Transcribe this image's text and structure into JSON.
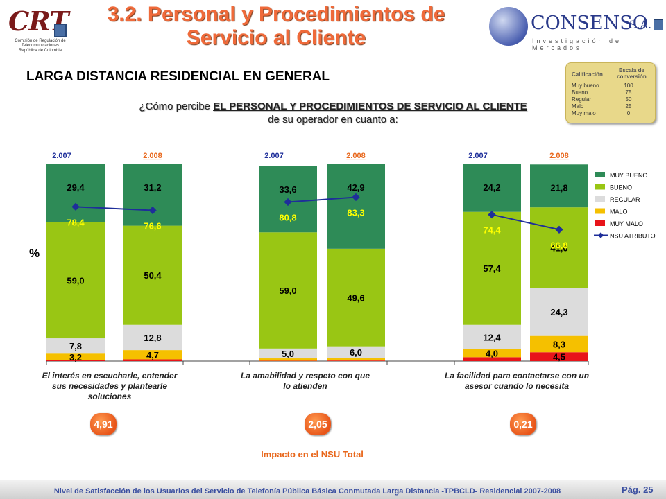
{
  "header": {
    "title_line1": "3.2. Personal y Procedimientos de",
    "title_line2": "Servicio al Cliente",
    "crt_logo": "CRT",
    "crt_caption": "Comisión de Regulación de Telecomunicaciones República de Colombia",
    "consenso_name": "CONSENSO",
    "consenso_sa": "S.A.",
    "consenso_sub": "Investigación de Mercados"
  },
  "section_title": "LARGA DISTANCIA RESIDENCIAL EN GENERAL",
  "question": {
    "prefix": "¿Cómo percibe ",
    "bold": "EL PERSONAL Y PROCEDIMIENTOS DE SERVICIO AL CLIENTE",
    "suffix": " de su operador en cuanto a:"
  },
  "scale_box": {
    "header_left": "Calificación",
    "header_right": "Escala de conversión",
    "rows": [
      {
        "label": "Muy bueno",
        "value": "100"
      },
      {
        "label": "Bueno",
        "value": "75"
      },
      {
        "label": "Regular",
        "value": "50"
      },
      {
        "label": "Malo",
        "value": "25"
      },
      {
        "label": "Muy malo",
        "value": "0"
      }
    ]
  },
  "y_unit_label": "%",
  "chart_data": {
    "type": "bar",
    "stacked": true,
    "years": [
      "2.007",
      "2.008"
    ],
    "categories": [
      "El interés en escucharle, entender sus necesidades y plantearle soluciones",
      "La amabilidad y respeto con que lo atienden",
      "La facilidad para contactarse con un asesor cuando lo necesita"
    ],
    "colors": {
      "MUY BUENO": "#2e8b57",
      "BUENO": "#99c614",
      "REGULAR": "#dcdcdc",
      "MALO": "#f5c000",
      "MUY MALO": "#e8141a",
      "NSU ATRIBUTO": "#1e2e9a"
    },
    "series_order": [
      "MUY MALO",
      "MALO",
      "REGULAR",
      "BUENO",
      "MUY BUENO"
    ],
    "bars": [
      {
        "category": 0,
        "year": "2.007",
        "values": {
          "MUY MALO": 0.6,
          "MALO": 3.2,
          "REGULAR": 7.8,
          "BUENO": 59.0,
          "MUY BUENO": 29.4
        },
        "labels": {
          "MUY MALO": "",
          "MALO": "3,2",
          "REGULAR": "7,8",
          "BUENO": "59,0",
          "MUY BUENO": "29,4"
        },
        "nsu": 78.4,
        "nsu_label": "78,4"
      },
      {
        "category": 0,
        "year": "2.008",
        "values": {
          "MUY MALO": 0.9,
          "MALO": 4.7,
          "REGULAR": 12.8,
          "BUENO": 50.4,
          "MUY BUENO": 31.2
        },
        "labels": {
          "MUY MALO": "",
          "MALO": "4,7",
          "REGULAR": "12,8",
          "BUENO": "50,4",
          "MUY BUENO": "31,2"
        },
        "nsu": 76.6,
        "nsu_label": "76,6"
      },
      {
        "category": 1,
        "year": "2.007",
        "values": {
          "MUY MALO": 0.2,
          "MALO": 1.2,
          "REGULAR": 5.0,
          "BUENO": 59.0,
          "MUY BUENO": 33.6
        },
        "labels": {
          "MUY MALO": "",
          "MALO": "",
          "REGULAR": "5,0",
          "BUENO": "59,0",
          "MUY BUENO": "33,6"
        },
        "nsu": 80.8,
        "nsu_label": "80,8"
      },
      {
        "category": 1,
        "year": "2.008",
        "values": {
          "MUY MALO": 0.3,
          "MALO": 1.2,
          "REGULAR": 6.0,
          "BUENO": 49.6,
          "MUY BUENO": 42.9
        },
        "labels": {
          "MUY MALO": "",
          "MALO": "",
          "REGULAR": "6,0",
          "BUENO": "49,6",
          "MUY BUENO": "42,9"
        },
        "nsu": 83.3,
        "nsu_label": "83,3"
      },
      {
        "category": 2,
        "year": "2.007",
        "values": {
          "MUY MALO": 2.0,
          "MALO": 4.0,
          "REGULAR": 12.4,
          "BUENO": 57.4,
          "MUY BUENO": 24.2
        },
        "labels": {
          "MUY MALO": "",
          "MALO": "4,0",
          "REGULAR": "12,4",
          "BUENO": "57,4",
          "MUY BUENO": "24,2"
        },
        "nsu": 74.4,
        "nsu_label": "74,4"
      },
      {
        "category": 2,
        "year": "2.008",
        "values": {
          "MUY MALO": 4.5,
          "MALO": 8.3,
          "REGULAR": 24.3,
          "BUENO": 41.0,
          "MUY BUENO": 21.8
        },
        "labels": {
          "MUY MALO": "4,5",
          "MALO": "8,3",
          "REGULAR": "24,3",
          "BUENO": "41,0",
          "MUY BUENO": "21,8"
        },
        "nsu": 66.8,
        "nsu_label": "66,8"
      }
    ],
    "legend": [
      "MUY BUENO",
      "BUENO",
      "REGULAR",
      "MALO",
      "MUY MALO",
      "NSU ATRIBUTO"
    ],
    "legend_position": "right",
    "ylim": [
      0,
      100
    ]
  },
  "impacts": [
    "4,91",
    "2,05",
    "0,21"
  ],
  "impact_caption": "Impacto en el NSU Total",
  "footer": {
    "text": "Nivel de Satisfacción de los Usuarios del Servicio de Telefonía Pública Básica Conmutada Larga Distancia -TPBCLD- Residencial 2007-2008",
    "page": "Pág. 25"
  }
}
